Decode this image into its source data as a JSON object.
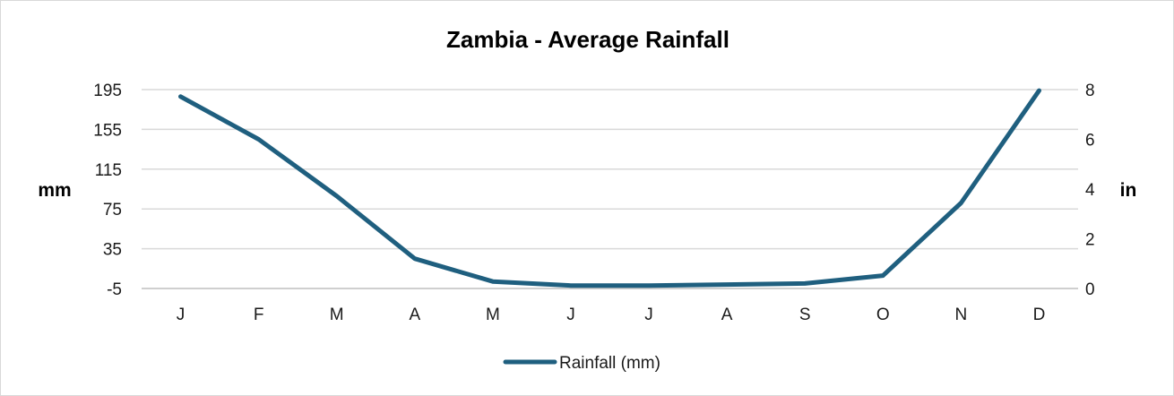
{
  "chart_data": {
    "type": "line",
    "title": "Zambia - Average Rainfall",
    "categories": [
      "J",
      "F",
      "M",
      "A",
      "M",
      "J",
      "J",
      "A",
      "S",
      "O",
      "N",
      "D"
    ],
    "series": [
      {
        "name": "Rainfall (mm)",
        "values": [
          188,
          145,
          88,
          25,
          2,
          -2,
          -2,
          -1,
          0,
          8,
          81,
          194
        ],
        "color": "#1f5f7f"
      }
    ],
    "y_left": {
      "label": "mm",
      "ticks": [
        "195",
        "155",
        "115",
        "75",
        "35",
        "-5"
      ],
      "ylim": [
        -5,
        195
      ]
    },
    "y_right": {
      "label": "in",
      "ticks": [
        "8",
        "6",
        "4",
        "2",
        "0"
      ],
      "ylim": [
        0,
        8
      ]
    },
    "grid": true,
    "legend_position": "bottom"
  }
}
